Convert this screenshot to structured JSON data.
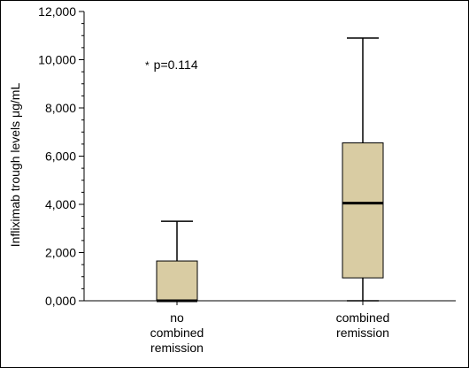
{
  "chart_data": {
    "type": "box",
    "ylabel": "Infliximab trough levels μg/mL",
    "ylim": [
      0,
      12000
    ],
    "yticks": [
      0,
      2000,
      4000,
      6000,
      8000,
      10000,
      12000
    ],
    "ytick_labels": [
      "0,000",
      "2,000",
      "4,000",
      "6,000",
      "8,000",
      "10,000",
      "12,000"
    ],
    "categories": [
      {
        "lines": [
          "no",
          "combined",
          "remission"
        ]
      },
      {
        "lines": [
          "combined",
          "remission"
        ]
      }
    ],
    "boxes": [
      {
        "min": 0,
        "q1": 0,
        "median": 0,
        "q3": 1650,
        "max": 3300
      },
      {
        "min": 0,
        "q1": 950,
        "median": 4050,
        "q3": 6550,
        "max": 10900
      }
    ],
    "annotation": {
      "text": "p=0.114",
      "marker": "*",
      "x_position": 0.25,
      "y_value": 9800
    },
    "box_color": "#d9cca3",
    "grid": false
  }
}
